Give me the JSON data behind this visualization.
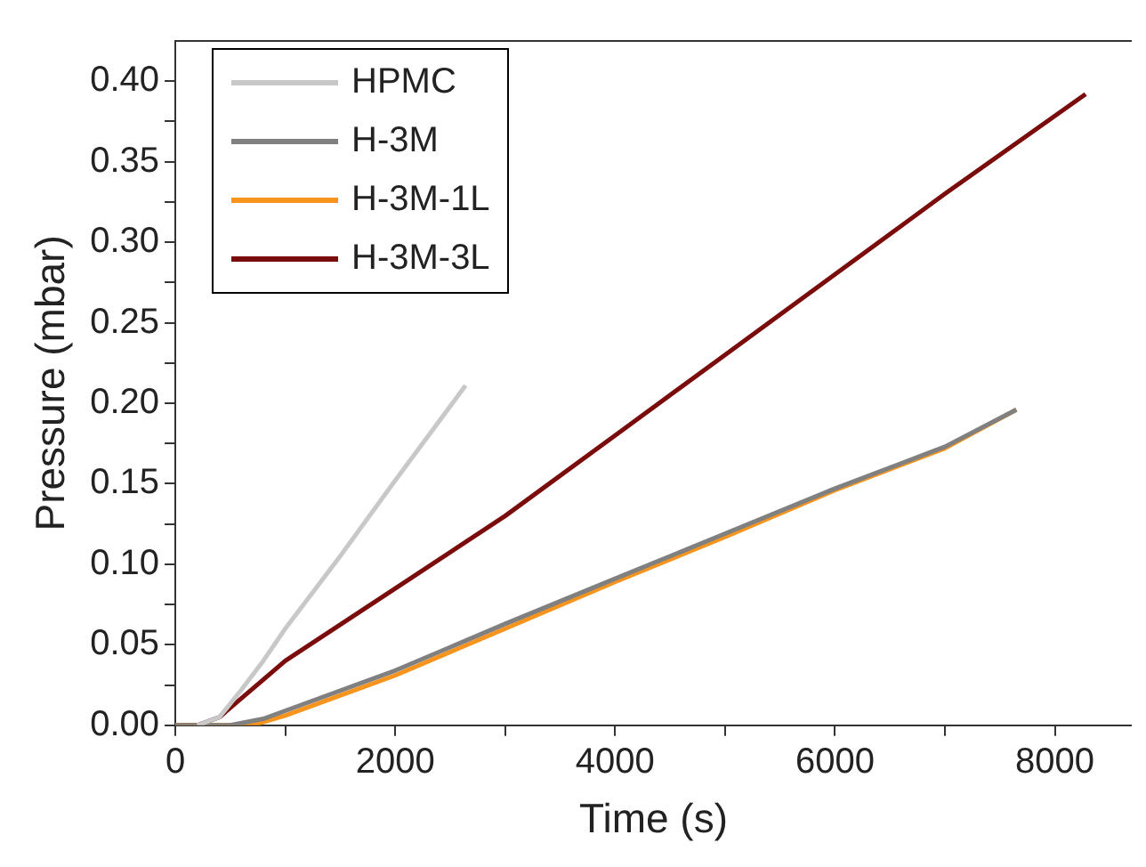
{
  "chart_data": {
    "type": "line",
    "xlabel": "Time (s)",
    "ylabel": "Pressure (mbar)",
    "xlim": [
      0,
      8700
    ],
    "ylim": [
      0,
      0.425
    ],
    "xticks": [
      0,
      {
        "value": 1000,
        "label": null
      },
      2000,
      {
        "value": 3000,
        "label": null
      },
      4000,
      {
        "value": 5000,
        "label": null
      },
      6000,
      {
        "value": 7000,
        "label": null
      },
      8000
    ],
    "yticks": [
      {
        "value": 0,
        "label": "0.00"
      },
      {
        "value": 0.025,
        "label": null
      },
      {
        "value": 0.05,
        "label": "0.05"
      },
      {
        "value": 0.075,
        "label": null
      },
      {
        "value": 0.1,
        "label": "0.10"
      },
      {
        "value": 0.125,
        "label": null
      },
      {
        "value": 0.15,
        "label": "0.15"
      },
      {
        "value": 0.175,
        "label": null
      },
      {
        "value": 0.2,
        "label": "0.20"
      },
      {
        "value": 0.225,
        "label": null
      },
      {
        "value": 0.25,
        "label": "0.25"
      },
      {
        "value": 0.275,
        "label": null
      },
      {
        "value": 0.3,
        "label": "0.30"
      },
      {
        "value": 0.325,
        "label": null
      },
      {
        "value": 0.35,
        "label": "0.35"
      },
      {
        "value": 0.375,
        "label": null
      },
      {
        "value": 0.4,
        "label": "0.40"
      }
    ],
    "grid": false,
    "legend": "top left",
    "marker": "none",
    "line_style": "solid",
    "series": [
      {
        "name": "HPMC",
        "color": "#c8c8c8",
        "x": [
          200,
          400,
          600,
          800,
          1000,
          1500,
          2000,
          2640
        ],
        "values": [
          0,
          0.005,
          0.022,
          0.04,
          0.06,
          0.105,
          0.152,
          0.211
        ]
      },
      {
        "name": "H-3M",
        "color": "#808080",
        "x": [
          0,
          500,
          800,
          1000,
          2000,
          3000,
          4000,
          5000,
          6000,
          7000,
          7650
        ],
        "values": [
          0,
          0,
          0.004,
          0.009,
          0.034,
          0.063,
          0.091,
          0.119,
          0.147,
          0.173,
          0.196
        ]
      },
      {
        "name": "H-3M-1L",
        "color": "#f7941d",
        "x": [
          0,
          700,
          1000,
          2000,
          3000,
          4000,
          5000,
          6000,
          7000,
          7650
        ],
        "values": [
          0,
          0,
          0.006,
          0.031,
          0.06,
          0.089,
          0.117,
          0.146,
          0.172,
          0.196
        ]
      },
      {
        "name": "H-3M-3L",
        "color": "#7b0c0c",
        "x": [
          0,
          200,
          400,
          1000,
          2000,
          3000,
          4000,
          5000,
          6000,
          7000,
          8280
        ],
        "values": [
          0,
          0,
          0.005,
          0.04,
          0.085,
          0.13,
          0.18,
          0.23,
          0.28,
          0.33,
          0.392
        ]
      }
    ]
  }
}
